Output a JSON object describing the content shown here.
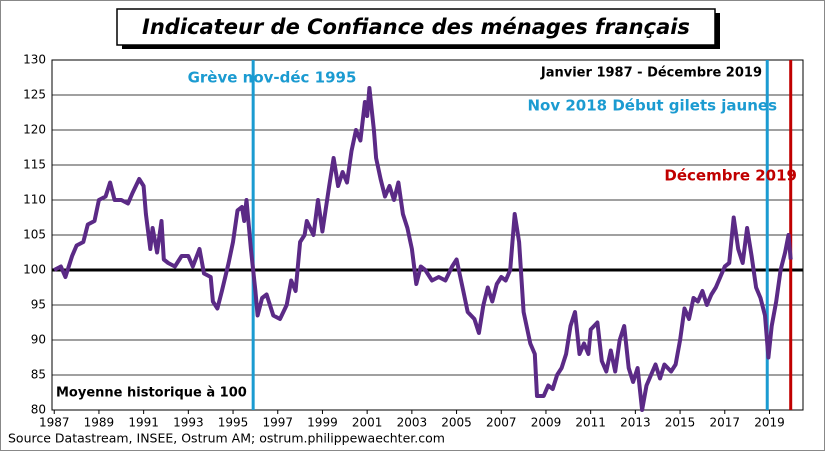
{
  "chart_data": {
    "type": "line",
    "title": "Indicateur de Confiance des ménages français",
    "source": "Source Datastream, INSEE, Ostrum AM;  ostrum.philippewaechter.com",
    "annotations": [
      {
        "text": "Grève nov-déc 1995",
        "color": "#1b9bd1"
      },
      {
        "text": "Janvier 1987 - Décembre 2019",
        "color": "#000000"
      },
      {
        "text": "Nov 2018 Début gilets jaunes",
        "color": "#1b9bd1"
      },
      {
        "text": "Décembre 2019",
        "color": "#c00000"
      },
      {
        "text": "Moyenne historique à 100",
        "color": "#000000"
      }
    ],
    "hline": {
      "y": 100,
      "color": "#000000"
    },
    "vlines": [
      {
        "x": 1995.9,
        "color": "#1b9bd1"
      },
      {
        "x": 2018.9,
        "color": "#1b9bd1"
      },
      {
        "x": 2019.95,
        "color": "#c00000"
      }
    ],
    "xlim": [
      1986.9,
      2020.5
    ],
    "ylim": [
      80,
      130
    ],
    "xticks": [
      1987,
      1989,
      1991,
      1993,
      1995,
      1997,
      1999,
      2001,
      2003,
      2005,
      2007,
      2009,
      2011,
      2013,
      2015,
      2017,
      2019
    ],
    "yticks": [
      80,
      85,
      90,
      95,
      100,
      105,
      110,
      115,
      120,
      125,
      130
    ],
    "grid": true,
    "series": [
      {
        "color": "#5b2a86",
        "x": [
          1987.0,
          1987.3,
          1987.5,
          1987.8,
          1988.0,
          1988.3,
          1988.5,
          1988.8,
          1989.0,
          1989.3,
          1989.5,
          1989.7,
          1990.0,
          1990.3,
          1990.5,
          1990.8,
          1991.0,
          1991.1,
          1991.3,
          1991.4,
          1991.6,
          1991.8,
          1991.9,
          1992.1,
          1992.4,
          1992.7,
          1993.0,
          1993.2,
          1993.5,
          1993.7,
          1994.0,
          1994.1,
          1994.3,
          1994.5,
          1994.8,
          1995.0,
          1995.2,
          1995.4,
          1995.5,
          1995.6,
          1995.8,
          1996.0,
          1996.1,
          1996.3,
          1996.5,
          1996.8,
          1997.1,
          1997.4,
          1997.6,
          1997.8,
          1998.0,
          1998.2,
          1998.3,
          1998.6,
          1998.8,
          1999.0,
          1999.3,
          1999.5,
          1999.7,
          1999.9,
          2000.1,
          2000.3,
          2000.5,
          2000.7,
          2000.9,
          2001.0,
          2001.1,
          2001.3,
          2001.4,
          2001.6,
          2001.8,
          2002.0,
          2002.2,
          2002.4,
          2002.6,
          2002.8,
          2003.0,
          2003.2,
          2003.4,
          2003.6,
          2003.9,
          2004.2,
          2004.5,
          2004.8,
          2005.0,
          2005.3,
          2005.5,
          2005.8,
          2006.0,
          2006.2,
          2006.4,
          2006.6,
          2006.8,
          2007.0,
          2007.2,
          2007.4,
          2007.6,
          2007.8,
          2008.0,
          2008.3,
          2008.5,
          2008.6,
          2008.9,
          2009.1,
          2009.3,
          2009.5,
          2009.7,
          2009.9,
          2010.1,
          2010.3,
          2010.5,
          2010.7,
          2010.9,
          2011.0,
          2011.3,
          2011.5,
          2011.7,
          2011.9,
          2012.1,
          2012.3,
          2012.5,
          2012.7,
          2012.9,
          2013.1,
          2013.3,
          2013.5,
          2013.7,
          2013.9,
          2014.1,
          2014.3,
          2014.6,
          2014.8,
          2015.0,
          2015.2,
          2015.4,
          2015.6,
          2015.8,
          2016.0,
          2016.2,
          2016.4,
          2016.6,
          2016.8,
          2017.0,
          2017.2,
          2017.4,
          2017.6,
          2017.8,
          2018.0,
          2018.2,
          2018.4,
          2018.6,
          2018.8,
          2018.95,
          2019.1,
          2019.3,
          2019.5,
          2019.7,
          2019.85,
          2019.95
        ],
        "values": [
          100,
          100.5,
          99,
          102,
          103.5,
          104,
          106.5,
          107,
          110,
          110.5,
          112.5,
          110,
          110,
          109.5,
          111,
          113,
          112,
          108,
          103,
          106,
          102.5,
          107,
          101.5,
          101,
          100.5,
          102,
          102,
          100.5,
          103,
          99.5,
          99,
          95.5,
          94.5,
          97,
          101,
          104,
          108.5,
          109,
          107,
          110,
          103,
          97,
          93.5,
          96,
          96.5,
          93.5,
          93,
          95,
          98.5,
          97,
          104,
          105,
          107,
          105,
          110,
          105.5,
          112,
          116,
          112,
          114,
          112.5,
          117,
          120,
          118.5,
          124,
          122,
          126,
          120,
          116,
          113,
          110.5,
          112,
          110,
          112.5,
          108,
          106,
          103,
          98,
          100.5,
          100,
          98.5,
          99,
          98.5,
          100.5,
          101.5,
          97,
          94,
          93,
          91,
          95,
          97.5,
          95.5,
          98,
          99,
          98.5,
          100,
          108,
          104,
          94,
          89.5,
          88,
          82,
          82,
          83.5,
          83,
          85,
          86,
          88,
          92,
          94,
          88,
          89.5,
          88,
          91.5,
          92.5,
          87,
          85.5,
          88.5,
          85.5,
          90,
          92,
          86,
          84,
          86,
          80,
          83.5,
          85,
          86.5,
          84.5,
          86.5,
          85.5,
          86.5,
          90,
          94.5,
          93,
          96,
          95.5,
          97,
          95,
          96.5,
          97.5,
          99,
          100.5,
          101,
          107.5,
          103,
          101,
          106,
          102,
          97.5,
          96,
          93.5,
          87.5,
          92,
          95.5,
          100,
          102.5,
          105,
          101.5
        ]
      }
    ]
  }
}
